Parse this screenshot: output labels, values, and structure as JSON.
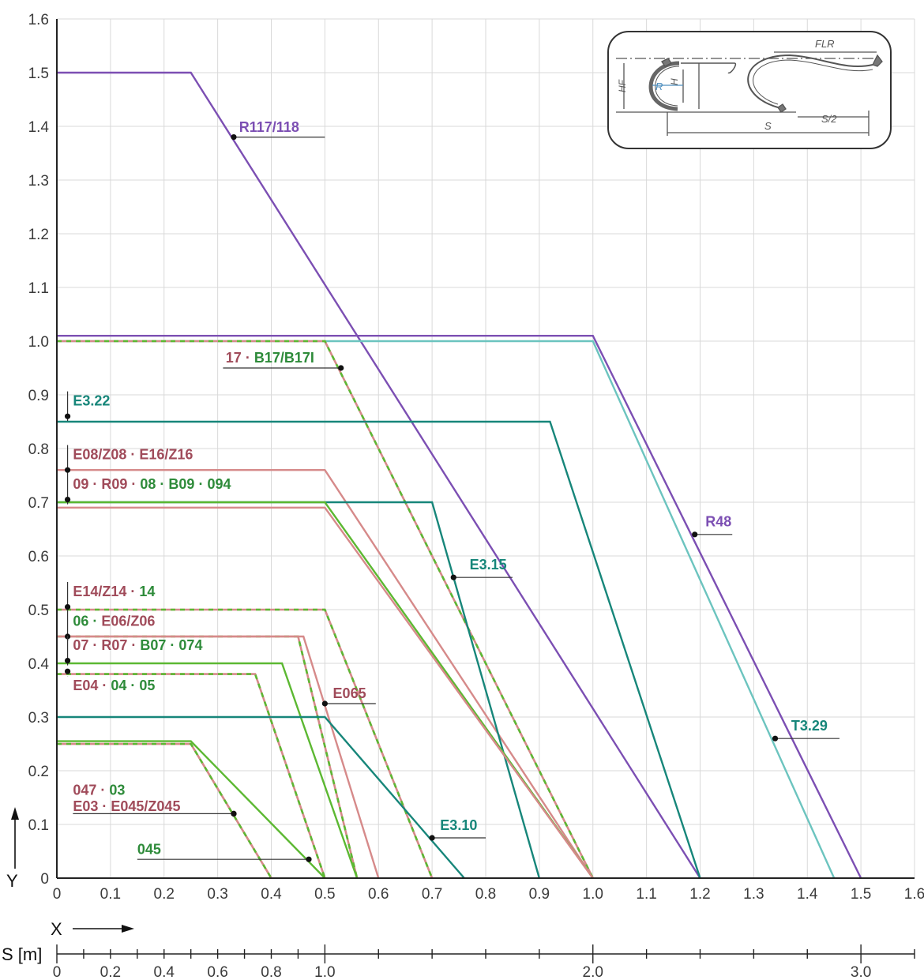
{
  "chart_data": {
    "type": "line",
    "x_axis": {
      "name": "X",
      "min": 0,
      "max": 1.6,
      "ticks": [
        "0",
        "0.1",
        "0.2",
        "0.3",
        "0.4",
        "0.5",
        "0.6",
        "0.7",
        "0.8",
        "0.9",
        "1.0",
        "1.1",
        "1.2",
        "1.3",
        "1.4",
        "1.5",
        "1.6"
      ]
    },
    "y_axis": {
      "name": "Y",
      "min": 0,
      "max": 1.6,
      "ticks": [
        "0",
        "0.1",
        "0.2",
        "0.3",
        "0.4",
        "0.5",
        "0.6",
        "0.7",
        "0.8",
        "0.9",
        "1.0",
        "1.1",
        "1.2",
        "1.3",
        "1.4",
        "1.5",
        "1.6"
      ]
    },
    "s_axis": {
      "name": "S [m]",
      "min": 0,
      "max": 3.2,
      "ticks": [
        "0",
        "0.2",
        "0.4",
        "0.6",
        "0.8",
        "1.0",
        "2.0",
        "3.0"
      ],
      "tick_values": [
        0,
        0.2,
        0.4,
        0.6,
        0.8,
        1.0,
        2.0,
        3.0
      ]
    },
    "grid": true,
    "colors": {
      "purple": "#7c4fb3",
      "teal": "#17867a",
      "lightteal": "#6cc4bf",
      "pink": "#d68a8a",
      "green": "#5cb832",
      "darkred": "#a04b5a",
      "darkgreen": "#2e8b3a",
      "grid": "#d9d9d9"
    },
    "series": [
      {
        "color": "purple",
        "x": [
          0,
          0.25,
          1.2
        ],
        "y": [
          1.5,
          1.5,
          0
        ]
      },
      {
        "color": "purple",
        "x": [
          0,
          1.0,
          1.5
        ],
        "y": [
          1.01,
          1.01,
          0
        ]
      },
      {
        "color": "lightteal",
        "x": [
          0,
          1.0,
          1.45
        ],
        "y": [
          1.0,
          1.0,
          0
        ]
      },
      {
        "color": "pink",
        "dashed_with": "green",
        "x": [
          0,
          0.5,
          1.0
        ],
        "y": [
          1.0,
          1.0,
          0
        ]
      },
      {
        "color": "teal",
        "x": [
          0,
          0.92,
          1.2
        ],
        "y": [
          0.85,
          0.85,
          0
        ]
      },
      {
        "color": "pink",
        "x": [
          0,
          0.5,
          1.0
        ],
        "y": [
          0.76,
          0.76,
          0
        ]
      },
      {
        "color": "teal",
        "x": [
          0,
          0.7,
          0.9
        ],
        "y": [
          0.7,
          0.7,
          0
        ]
      },
      {
        "color": "green",
        "x": [
          0,
          0.5,
          1.0
        ],
        "y": [
          0.7,
          0.7,
          0
        ]
      },
      {
        "color": "pink",
        "x": [
          0,
          0.5,
          1.0
        ],
        "y": [
          0.69,
          0.69,
          0
        ]
      },
      {
        "color": "pink",
        "dashed_with": "green",
        "x": [
          0,
          0.5,
          0.7
        ],
        "y": [
          0.5,
          0.5,
          0
        ]
      },
      {
        "color": "pink",
        "dashed_with": "green",
        "x": [
          0,
          0.45,
          0.56
        ],
        "y": [
          0.45,
          0.45,
          0
        ]
      },
      {
        "color": "pink",
        "x": [
          0,
          0.46,
          0.6
        ],
        "y": [
          0.45,
          0.45,
          0
        ]
      },
      {
        "color": "green",
        "x": [
          0,
          0.42,
          0.56
        ],
        "y": [
          0.4,
          0.4,
          0
        ]
      },
      {
        "color": "pink",
        "dashed_with": "green",
        "x": [
          0,
          0.37,
          0.5
        ],
        "y": [
          0.38,
          0.38,
          0
        ]
      },
      {
        "color": "teal",
        "x": [
          0,
          0.5,
          0.76
        ],
        "y": [
          0.3,
          0.3,
          0
        ]
      },
      {
        "color": "green",
        "x": [
          0,
          0.25,
          0.5
        ],
        "y": [
          0.255,
          0.255,
          0
        ]
      },
      {
        "color": "pink",
        "x": [
          0,
          0.25,
          0.4
        ],
        "y": [
          0.25,
          0.25,
          0
        ]
      },
      {
        "color": "pink",
        "dashed_with": "green",
        "x": [
          0,
          0.25,
          0.4
        ],
        "y": [
          0.25,
          0.25,
          0
        ]
      }
    ],
    "annotations": [
      {
        "parts": [
          {
            "text": "R117/118",
            "color": "purple"
          }
        ],
        "point": [
          0.33,
          1.38
        ],
        "text_x": 0.34,
        "text_y": 1.39,
        "line_to": 0.5
      },
      {
        "parts": [
          {
            "text": "17 · ",
            "color": "darkred"
          },
          {
            "text": "B17/B17I",
            "color": "darkgreen"
          }
        ],
        "point": [
          0.53,
          0.95
        ],
        "text_x": 0.315,
        "text_y": 0.96,
        "line_from": 0.31
      },
      {
        "parts": [
          {
            "text": "E3.22",
            "color": "teal"
          }
        ],
        "point": [
          0.02,
          0.86
        ],
        "text_x": 0.03,
        "text_y": 0.88,
        "bracket": true
      },
      {
        "parts": [
          {
            "text": "E08/Z08 · E16/Z16",
            "color": "darkred"
          }
        ],
        "point": [
          0.02,
          0.76
        ],
        "text_x": 0.03,
        "text_y": 0.78,
        "bracket": true
      },
      {
        "parts": [
          {
            "text": "09 · R09 · ",
            "color": "darkred"
          },
          {
            "text": "08 · B09 · 094",
            "color": "darkgreen"
          }
        ],
        "point": [
          0.02,
          0.705
        ],
        "text_x": 0.03,
        "text_y": 0.725,
        "bracket": true
      },
      {
        "parts": [
          {
            "text": "R48",
            "color": "purple"
          }
        ],
        "point": [
          1.19,
          0.64
        ],
        "text_x": 1.21,
        "text_y": 0.655,
        "line_to": 1.26
      },
      {
        "parts": [
          {
            "text": "E3.15",
            "color": "teal"
          }
        ],
        "point": [
          0.74,
          0.56
        ],
        "text_x": 0.77,
        "text_y": 0.575,
        "line_to": 0.85
      },
      {
        "parts": [
          {
            "text": "E14/Z14 · ",
            "color": "darkred"
          },
          {
            "text": "14",
            "color": "darkgreen"
          }
        ],
        "point": [
          0.02,
          0.505
        ],
        "text_x": 0.03,
        "text_y": 0.525,
        "bracket": true
      },
      {
        "parts": [
          {
            "text": "06 · ",
            "color": "darkgreen"
          },
          {
            "text": "E06/Z06",
            "color": "darkred"
          }
        ],
        "point": [
          0.02,
          0.45
        ],
        "text_x": 0.03,
        "text_y": 0.47,
        "bracket": true
      },
      {
        "parts": [
          {
            "text": "07 · R07 · ",
            "color": "darkred"
          },
          {
            "text": "B07 · 074",
            "color": "darkgreen"
          }
        ],
        "point": [
          0.02,
          0.405
        ],
        "text_x": 0.03,
        "text_y": 0.425,
        "bracket": true
      },
      {
        "parts": [
          {
            "text": "E04 · ",
            "color": "darkred"
          },
          {
            "text": "04 · 05",
            "color": "darkgreen"
          }
        ],
        "point": [
          0.02,
          0.385
        ],
        "text_x": 0.03,
        "text_y": 0.35,
        "bracket": true
      },
      {
        "parts": [
          {
            "text": "E065",
            "color": "darkred"
          }
        ],
        "point": [
          0.5,
          0.325
        ],
        "text_x": 0.515,
        "text_y": 0.335,
        "line_to": 0.595
      },
      {
        "parts": [
          {
            "text": "T3.29",
            "color": "teal"
          }
        ],
        "point": [
          1.34,
          0.26
        ],
        "text_x": 1.37,
        "text_y": 0.275,
        "line_to": 1.46
      },
      {
        "parts": [
          {
            "text": "047 · ",
            "color": "darkred"
          },
          {
            "text": "03",
            "color": "darkgreen"
          }
        ],
        "point": [
          0.33,
          0.12
        ],
        "text_x": 0.03,
        "text_y": 0.155
      },
      {
        "parts": [
          {
            "text": "E03 · E045/Z045",
            "color": "darkred"
          }
        ],
        "point": [
          0.33,
          0.12
        ],
        "text_x": 0.03,
        "text_y": 0.125,
        "line_from": 0.03
      },
      {
        "parts": [
          {
            "text": "E3.10",
            "color": "teal"
          }
        ],
        "point": [
          0.7,
          0.075
        ],
        "text_x": 0.715,
        "text_y": 0.09,
        "line_to": 0.8
      },
      {
        "parts": [
          {
            "text": "045",
            "color": "darkgreen"
          }
        ],
        "point": [
          0.47,
          0.035
        ],
        "text_x": 0.15,
        "text_y": 0.045,
        "line_from": 0.15
      }
    ]
  },
  "inset": {
    "labels": {
      "flr": "FLR",
      "r": "R",
      "h": "H",
      "hf": "HF",
      "s": "S",
      "s_half": "S/2"
    }
  }
}
